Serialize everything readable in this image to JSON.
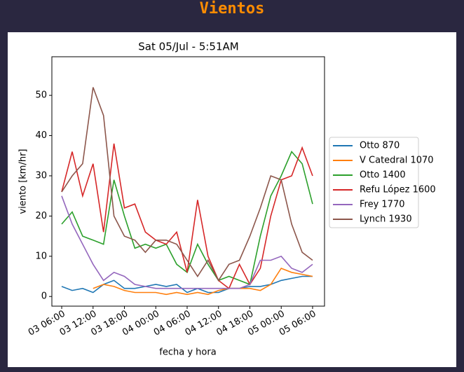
{
  "header": {
    "title": "Vientos"
  },
  "chart_data": {
    "type": "line",
    "title": "Sat 05/Jul - 5:51AM",
    "x_label": "fecha y hora",
    "y_label": "viento [km/hr]",
    "x": [
      "03 06:00",
      "03 08:00",
      "03 10:00",
      "03 12:00",
      "03 14:00",
      "03 16:00",
      "03 18:00",
      "03 20:00",
      "03 22:00",
      "04 00:00",
      "04 02:00",
      "04 04:00",
      "04 06:00",
      "04 08:00",
      "04 10:00",
      "04 12:00",
      "04 14:00",
      "04 16:00",
      "04 18:00",
      "04 20:00",
      "04 22:00",
      "05 00:00",
      "05 02:00",
      "05 04:00",
      "05 06:00"
    ],
    "xlim": [
      "03 04:07",
      "05 08:17"
    ],
    "xticks": [
      "03 06:00",
      "03 12:00",
      "03 18:00",
      "04 00:00",
      "04 06:00",
      "04 12:00",
      "04 18:00",
      "05 00:00",
      "05 06:00"
    ],
    "ylim": [
      -2.4,
      59.6
    ],
    "yticks": [
      0,
      10,
      20,
      30,
      40,
      50
    ],
    "legend": "right-outside",
    "series": [
      {
        "name": "Otto 870",
        "color": "#1f77b4",
        "values": [
          2.5,
          1.5,
          2,
          1,
          3,
          4,
          2,
          2,
          2.5,
          3,
          2.5,
          3,
          1,
          2,
          1,
          1,
          2,
          2,
          2.5,
          2.5,
          3,
          4,
          4.5,
          5,
          5
        ]
      },
      {
        "name": "V Catedral 1070",
        "color": "#ff7f0e",
        "values": [
          null,
          null,
          null,
          2,
          3,
          2.5,
          1.5,
          1,
          1,
          1,
          0.5,
          1,
          0.5,
          1,
          0.5,
          1.5,
          2,
          2,
          2,
          1.5,
          3,
          7,
          6,
          5.5,
          5
        ]
      },
      {
        "name": "Otto 1400",
        "color": "#2ca02c",
        "values": [
          18,
          21,
          15,
          14,
          13,
          29,
          20,
          12,
          13,
          12,
          13,
          8,
          6,
          13,
          8,
          4,
          5,
          4,
          3,
          15,
          25,
          30,
          36,
          33,
          23
        ]
      },
      {
        "name": "Refu López 1600",
        "color": "#d62728",
        "values": [
          26,
          36,
          25,
          33,
          16,
          38,
          22,
          23,
          16,
          14,
          13,
          16,
          6,
          24,
          10,
          4,
          2,
          8,
          3,
          7,
          20,
          29,
          30,
          37,
          30
        ]
      },
      {
        "name": "Frey 1770",
        "color": "#9467bd",
        "values": [
          25,
          18,
          13,
          8,
          4,
          6,
          5,
          3,
          2.5,
          2,
          2,
          2,
          2,
          2,
          2,
          2,
          2,
          2,
          3,
          9,
          9,
          10,
          7,
          6,
          8
        ]
      },
      {
        "name": "Lynch 1930",
        "color": "#8c564b",
        "values": [
          26,
          30,
          33,
          52,
          45,
          20,
          15,
          14,
          11,
          14,
          14,
          13,
          9,
          5,
          9,
          4,
          8,
          9,
          15,
          22,
          30,
          29,
          18,
          11,
          9
        ]
      }
    ]
  }
}
